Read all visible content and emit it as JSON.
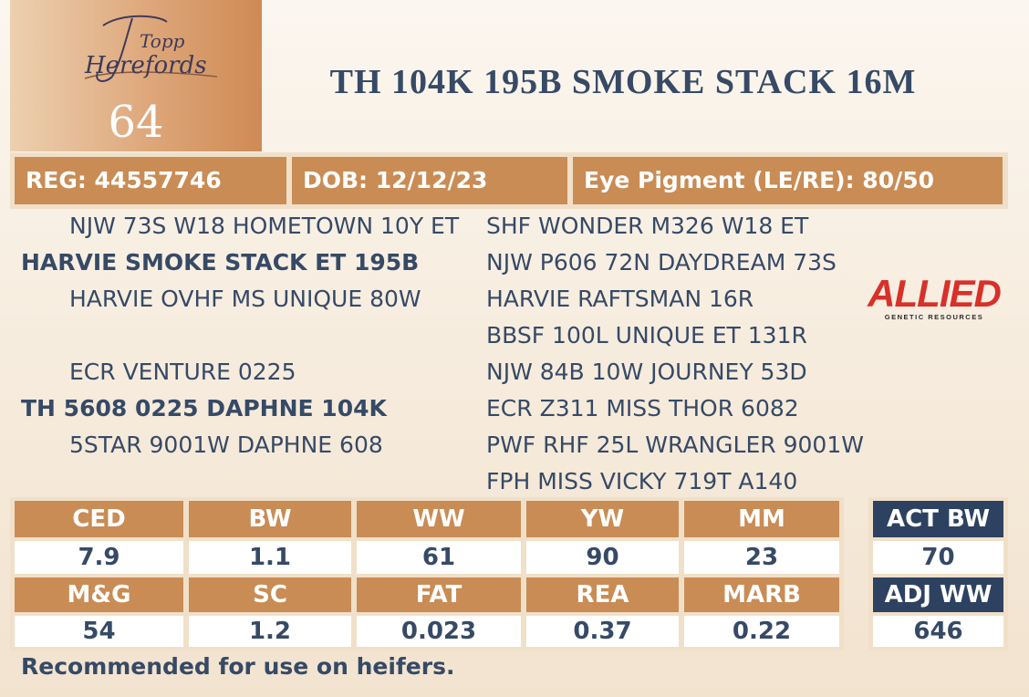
{
  "logo": {
    "text_line1": "Topp",
    "text_line2": "Herefords"
  },
  "lot_number": "64",
  "animal_name": "TH 104K 195B SMOKE STACK 16M",
  "info": {
    "reg": "REG: 44557746",
    "dob": "DOB: 12/12/23",
    "eye_pigment": "Eye Pigment (LE/RE): 80/50"
  },
  "pedigree": {
    "sire_sire": "NJW 73S W18 HOMETOWN 10Y ET",
    "sire": "HARVIE SMOKE STACK ET 195B",
    "sire_dam": "HARVIE OVHF MS UNIQUE 80W",
    "dam_sire": "ECR VENTURE 0225",
    "dam": "TH 5608 0225 DAPHNE 104K",
    "dam_dam": "5STAR 9001W DAPHNE 608",
    "great_grandparents": [
      "SHF WONDER M326 W18 ET",
      "NJW P606 72N DAYDREAM 73S",
      "HARVIE RAFTSMAN 16R",
      "BBSF 100L UNIQUE ET 131R",
      "NJW 84B 10W JOURNEY 53D",
      "ECR Z311 MISS THOR 6082",
      "PWF RHF 25L WRANGLER 9001W",
      "FPH MISS VICKY 719T A140"
    ]
  },
  "sponsor_logo": {
    "name": "ALLIED",
    "tagline": "GENETIC RESOURCES",
    "color": "#d9302a"
  },
  "epds": {
    "row1": [
      {
        "label": "CED",
        "value": "7.9"
      },
      {
        "label": "BW",
        "value": "1.1"
      },
      {
        "label": "WW",
        "value": "61"
      },
      {
        "label": "YW",
        "value": "90"
      },
      {
        "label": "MM",
        "value": "23"
      }
    ],
    "row2": [
      {
        "label": "M&G",
        "value": "54"
      },
      {
        "label": "SC",
        "value": "1.2"
      },
      {
        "label": "FAT",
        "value": "0.023"
      },
      {
        "label": "REA",
        "value": "0.37"
      },
      {
        "label": "MARB",
        "value": "0.22"
      }
    ]
  },
  "actuals": {
    "act_bw_label": "ACT BW",
    "act_bw_value": "70",
    "adj_ww_label": "ADJ WW",
    "adj_ww_value": "646"
  },
  "note": "Recommended for use on heifers.",
  "colors": {
    "tan": "#c98c55",
    "navy": "#2d4260",
    "text": "#364a66"
  }
}
